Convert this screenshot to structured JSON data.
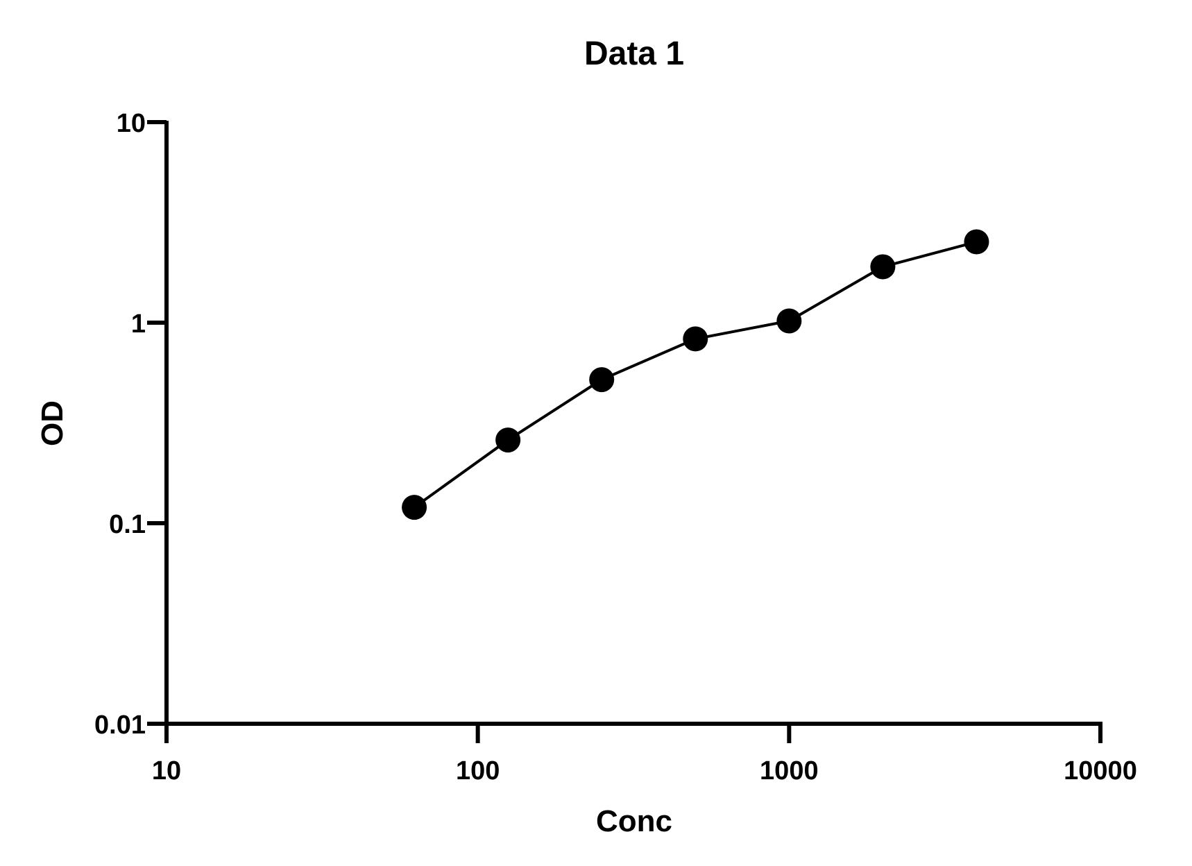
{
  "chart_data": {
    "type": "line",
    "title": "Data 1",
    "xlabel": "Conc",
    "ylabel": "OD",
    "xscale": "log",
    "yscale": "log",
    "xlim": [
      10,
      10000
    ],
    "ylim": [
      0.01,
      10
    ],
    "xticks": [
      "10",
      "100",
      "1000",
      "10000"
    ],
    "yticks": [
      "0.01",
      "0.1",
      "1",
      "10"
    ],
    "grid": false,
    "marker": "filled-circle",
    "color": "#000000",
    "x": [
      62.5,
      125,
      250,
      500,
      1000,
      2000,
      4000
    ],
    "y": [
      0.12,
      0.26,
      0.52,
      0.83,
      1.02,
      1.9,
      2.53
    ]
  }
}
